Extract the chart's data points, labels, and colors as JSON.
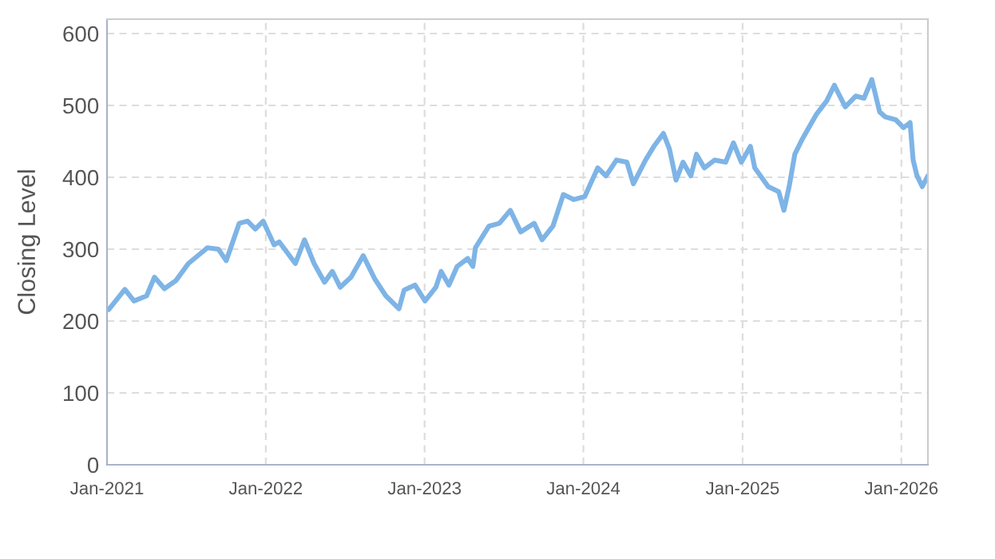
{
  "chart_data": {
    "type": "line",
    "ylabel": "Closing Level",
    "x": [
      "2021-01-05",
      "2021-02-11",
      "2021-03-04",
      "2021-04-02",
      "2021-04-20",
      "2021-05-13",
      "2021-06-08",
      "2021-07-07",
      "2021-08-20",
      "2021-09-14",
      "2021-10-02",
      "2021-11-01",
      "2021-11-20",
      "2021-12-08",
      "2021-12-26",
      "2022-01-20",
      "2022-02-01",
      "2022-03-10",
      "2022-03-31",
      "2022-04-22",
      "2022-05-16",
      "2022-06-03",
      "2022-06-21",
      "2022-07-16",
      "2022-08-13",
      "2022-09-09",
      "2022-10-04",
      "2022-11-03",
      "2022-11-15",
      "2022-12-10",
      "2023-01-02",
      "2023-01-27",
      "2023-02-08",
      "2023-02-26",
      "2023-03-17",
      "2023-04-10",
      "2023-04-22",
      "2023-04-28",
      "2023-05-29",
      "2023-06-22",
      "2023-07-17",
      "2023-08-10",
      "2023-09-10",
      "2023-09-28",
      "2023-10-23",
      "2023-11-16",
      "2023-12-10",
      "2024-01-04",
      "2024-02-03",
      "2024-02-22",
      "2024-03-17",
      "2024-04-10",
      "2024-04-25",
      "2024-05-23",
      "2024-06-11",
      "2024-07-03",
      "2024-07-17",
      "2024-08-01",
      "2024-08-17",
      "2024-09-04",
      "2024-09-17",
      "2024-10-05",
      "2024-10-29",
      "2024-11-23",
      "2024-12-11",
      "2024-12-29",
      "2025-01-19",
      "2025-01-29",
      "2025-03-01",
      "2025-03-25",
      "2025-04-06",
      "2025-04-18",
      "2025-05-01",
      "2025-05-19",
      "2025-06-19",
      "2025-07-13",
      "2025-07-31",
      "2025-08-25",
      "2025-09-18",
      "2025-10-07",
      "2025-10-25",
      "2025-11-12",
      "2025-11-25",
      "2025-12-19",
      "2026-01-06",
      "2026-01-21",
      "2026-01-28",
      "2026-02-06",
      "2026-02-18",
      "2026-03-03"
    ],
    "series": [
      {
        "color": "#7eb4e6",
        "values": [
          216,
          244,
          228,
          235,
          261,
          245,
          256,
          280,
          302,
          300,
          284,
          336,
          339,
          328,
          339,
          306,
          310,
          280,
          313,
          280,
          254,
          269,
          247,
          261,
          291,
          258,
          235,
          217,
          243,
          250,
          228,
          247,
          269,
          250,
          276,
          287,
          276,
          302,
          332,
          336,
          354,
          324,
          336,
          313,
          332,
          376,
          369,
          373,
          413,
          402,
          424,
          421,
          391,
          424,
          443,
          461,
          439,
          396,
          421,
          402,
          432,
          413,
          424,
          421,
          448,
          421,
          443,
          413,
          387,
          380,
          354,
          387,
          432,
          454,
          487,
          506,
          528,
          498,
          513,
          510,
          536,
          491,
          484,
          480,
          469,
          476,
          424,
          402,
          387,
          402
        ]
      }
    ],
    "xlim": [
      "2021-01-01",
      "2026-03-03"
    ],
    "xticks": [
      {
        "value": "2021-01-01",
        "label": "Jan-2021"
      },
      {
        "value": "2022-01-01",
        "label": "Jan-2022"
      },
      {
        "value": "2023-01-01",
        "label": "Jan-2023"
      },
      {
        "value": "2024-01-01",
        "label": "Jan-2024"
      },
      {
        "value": "2025-01-01",
        "label": "Jan-2025"
      },
      {
        "value": "2026-01-01",
        "label": "Jan-2026"
      }
    ],
    "ylim": [
      0,
      620
    ],
    "yticks": [
      0,
      100,
      200,
      300,
      400,
      500,
      600
    ],
    "grid": true,
    "line_style": "solid",
    "marker": "none"
  }
}
